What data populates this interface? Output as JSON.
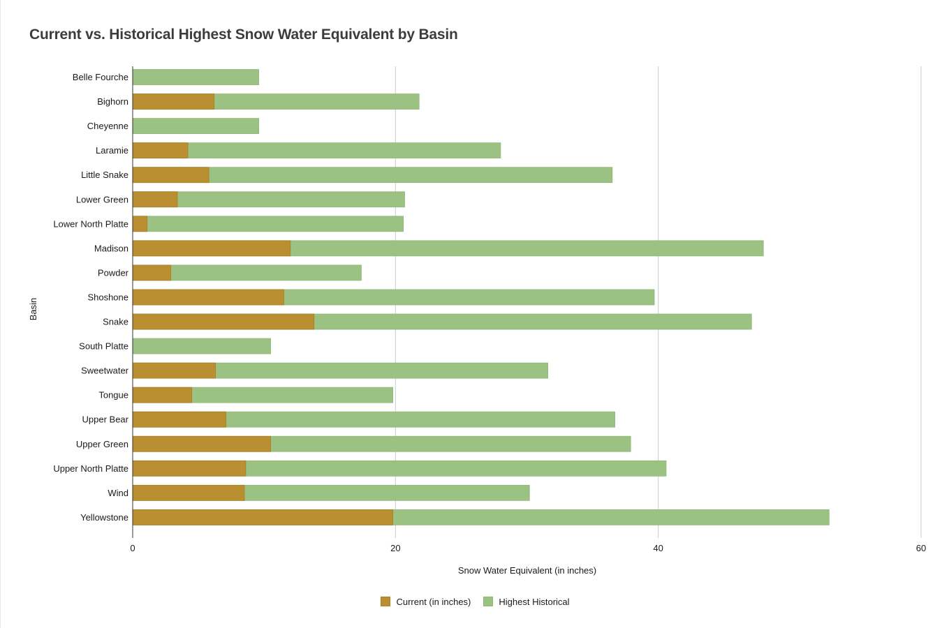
{
  "chart_data": {
    "type": "bar",
    "orientation": "horizontal",
    "stacked": false,
    "title": "Current vs. Historical Highest Snow Water Equivalent by Basin",
    "xlabel": "Snow Water Equivalent (in inches)",
    "ylabel": "Basin",
    "xlim": [
      0,
      60
    ],
    "xticks": [
      "0",
      "20",
      "40",
      "60"
    ],
    "grid": true,
    "legend_position": "bottom",
    "categories": [
      "Belle Fourche",
      "Bighorn",
      "Cheyenne",
      "Laramie",
      "Little Snake",
      "Lower Green",
      "Lower North Platte",
      "Madison",
      "Powder",
      "Shoshone",
      "Snake",
      "South Platte",
      "Sweetwater",
      "Tongue",
      "Upper Bear",
      "Upper Green",
      "Upper North Platte",
      "Wind",
      "Yellowstone"
    ],
    "series": [
      {
        "name": "Current (in inches)",
        "color": "#b98f31",
        "values": [
          0,
          6.2,
          0,
          4.2,
          5.8,
          3.4,
          1.1,
          12.0,
          2.9,
          11.5,
          13.8,
          0,
          6.3,
          4.5,
          7.1,
          10.5,
          8.6,
          8.5,
          19.8
        ]
      },
      {
        "name": "Highest Historical",
        "color": "#9bc283",
        "values": [
          9.6,
          21.8,
          9.6,
          28.0,
          36.5,
          20.7,
          20.6,
          48.0,
          17.4,
          39.7,
          47.1,
          10.5,
          31.6,
          19.8,
          36.7,
          37.9,
          40.6,
          30.2,
          53.0
        ]
      }
    ]
  }
}
